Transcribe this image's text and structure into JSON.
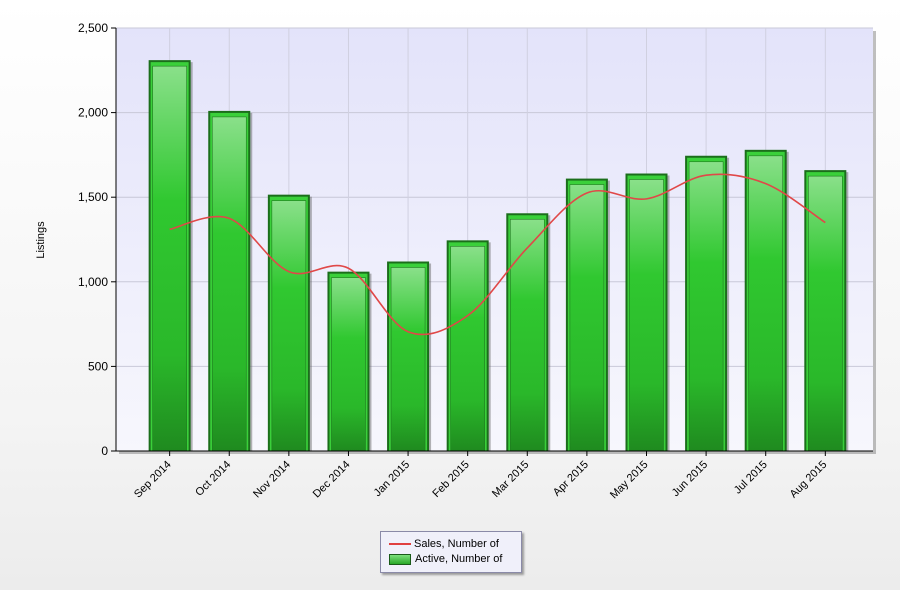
{
  "chart_data": {
    "type": "bar",
    "ylabel": "Listings",
    "ylim": [
      0,
      2500
    ],
    "yticks": [
      0,
      500,
      1000,
      1500,
      2000,
      2500
    ],
    "ytick_labels": [
      "0",
      "500",
      "1,000",
      "1,500",
      "2,000",
      "2,500"
    ],
    "categories": [
      "Sep 2014",
      "Oct 2014",
      "Nov 2014",
      "Dec 2014",
      "Jan 2015",
      "Feb 2015",
      "Mar 2015",
      "Apr 2015",
      "May 2015",
      "Jun 2015",
      "Jul 2015",
      "Aug 2015"
    ],
    "series": [
      {
        "name": "Active, Number of",
        "kind": "bar",
        "color": "#2ec42e",
        "values": [
          2310,
          2010,
          1515,
          1060,
          1120,
          1245,
          1405,
          1610,
          1640,
          1745,
          1780,
          1660
        ]
      },
      {
        "name": "Sales, Number of",
        "kind": "line",
        "color": "#e04848",
        "values": [
          1310,
          1375,
          1060,
          1080,
          705,
          800,
          1200,
          1525,
          1490,
          1630,
          1580,
          1350
        ]
      }
    ],
    "grid": true,
    "legend_position": "bottom-center"
  },
  "legend": {
    "line_label": "Sales, Number of",
    "bar_label": "Active, Number of"
  }
}
